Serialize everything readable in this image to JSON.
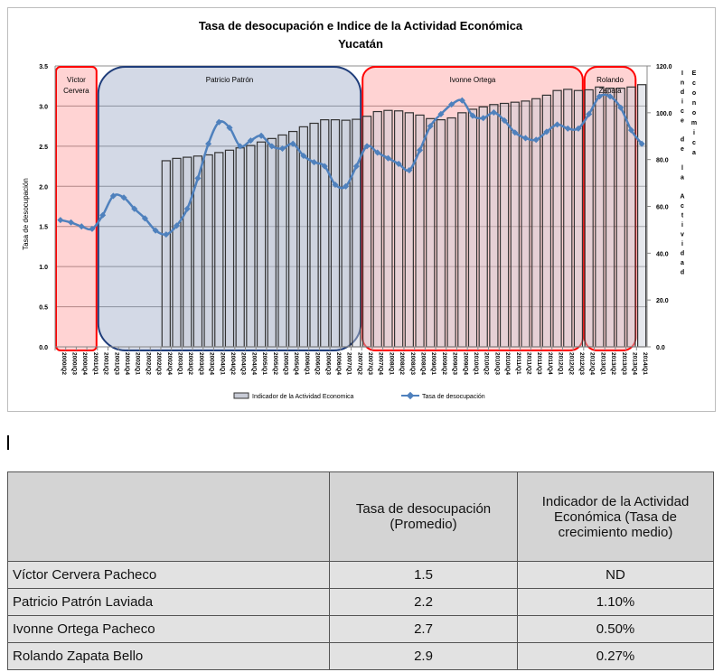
{
  "chart_data": {
    "type": "bar+line",
    "title": "Tasa de desocupación e Indice de la Actividad Económica",
    "subtitle": "Yucatán",
    "ylabel": "Tasa de desocupación",
    "y2label": "Indice de la Actividad Economica",
    "ylim": [
      0,
      3.5
    ],
    "yticks": [
      "0.0",
      "0.5",
      "1.0",
      "1.5",
      "2.0",
      "2.5",
      "3.0",
      "3.5"
    ],
    "y2lim": [
      0,
      120
    ],
    "y2ticks": [
      "0.0",
      "20.0",
      "40.0",
      "60.0",
      "80.0",
      "100.0",
      "120.0"
    ],
    "grid": true,
    "legend": "bottom",
    "categories": [
      "2000/Q2",
      "2000/Q3",
      "2000/Q4",
      "2001/Q1",
      "2001/Q2",
      "2001/Q3",
      "2001/Q4",
      "2002/Q1",
      "2002/Q2",
      "2002/Q3",
      "2002/Q4",
      "2003/Q1",
      "2003/Q2",
      "2003/Q3",
      "2003/Q4",
      "2004/Q1",
      "2004/Q2",
      "2004/Q3",
      "2004/Q4",
      "2005/Q1",
      "2005/Q2",
      "2005/Q3",
      "2005/Q4",
      "2006/Q1",
      "2006/Q2",
      "2006/Q3",
      "2006/Q4",
      "2007/Q1",
      "2007/Q2",
      "2007/Q3",
      "2007/Q4",
      "2008/Q1",
      "2008/Q2",
      "2008/Q3",
      "2008/Q4",
      "2009/Q1",
      "2009/Q2",
      "2009/Q3",
      "2009/Q4",
      "2010/Q1",
      "2010/Q2",
      "2010/Q3",
      "2010/Q4",
      "2011/Q1",
      "2011/Q2",
      "2011/Q3",
      "2011/Q4",
      "2012/Q1",
      "2012/Q2",
      "2012/Q3",
      "2012/Q4",
      "2013/Q1",
      "2013/Q2",
      "2013/Q3",
      "2013/Q4",
      "2014/Q1"
    ],
    "series": [
      {
        "name": "Indicador de la Actividad Economica",
        "type": "bar",
        "axis": "right",
        "color": "#c8cbd6",
        "values": [
          null,
          null,
          null,
          null,
          null,
          null,
          null,
          null,
          null,
          null,
          79.5,
          80.5,
          81.0,
          81.5,
          82.0,
          83.0,
          84.0,
          85.0,
          86.0,
          87.5,
          89.0,
          90.5,
          92.0,
          94.0,
          95.5,
          97.0,
          97.0,
          96.8,
          97.2,
          98.5,
          100.5,
          101.0,
          100.8,
          100.0,
          99.0,
          97.5,
          97.0,
          97.8,
          100.0,
          101.5,
          102.5,
          103.5,
          104.0,
          104.5,
          105.0,
          106.0,
          107.5,
          109.5,
          110.0,
          109.5,
          109.8,
          111.0,
          110.5,
          110.5,
          111.0,
          112.0
        ]
      },
      {
        "name": "Tasa de desocupación",
        "type": "line",
        "axis": "left",
        "color": "#4f81bd",
        "values": [
          1.58,
          1.55,
          1.5,
          1.47,
          1.64,
          1.88,
          1.86,
          1.72,
          1.6,
          1.45,
          1.4,
          1.51,
          1.72,
          2.1,
          2.53,
          2.8,
          2.73,
          2.5,
          2.57,
          2.63,
          2.5,
          2.47,
          2.53,
          2.38,
          2.3,
          2.25,
          2.02,
          2.0,
          2.25,
          2.5,
          2.42,
          2.35,
          2.28,
          2.2,
          2.45,
          2.75,
          2.9,
          3.02,
          3.07,
          2.88,
          2.85,
          2.92,
          2.82,
          2.67,
          2.6,
          2.58,
          2.68,
          2.77,
          2.72,
          2.72,
          2.9,
          3.12,
          3.12,
          2.98,
          2.7,
          2.53
        ]
      }
    ],
    "annotations": [
      {
        "label": "Víctor Cervera",
        "from": "2000/Q2",
        "to": "2001/Q1",
        "color": "#ff0000"
      },
      {
        "label": "Patricio Patrón",
        "from": "2001/Q2",
        "to": "2007/Q2",
        "color": "#1f3d7a"
      },
      {
        "label": "Ivonne Ortega",
        "from": "2007/Q3",
        "to": "2012/Q3",
        "color": "#ff0000"
      },
      {
        "label": "Rolando Zapata",
        "from": "2012/Q4",
        "to": "2013/Q4",
        "color": "#ff0000"
      }
    ]
  },
  "table": {
    "headers": [
      "",
      "Tasa de desocupación (Promedio)",
      "Indicador de la Actividad Económica (Tasa de crecimiento medio)"
    ],
    "rows": [
      [
        "Víctor Cervera Pacheco",
        "1.5",
        "ND"
      ],
      [
        "Patricio Patrón Laviada",
        "2.2",
        "1.10%"
      ],
      [
        "Ivonne Ortega Pacheco",
        "2.7",
        "0.50%"
      ],
      [
        "Rolando Zapata Bello",
        "2.9",
        "0.27%"
      ]
    ]
  }
}
